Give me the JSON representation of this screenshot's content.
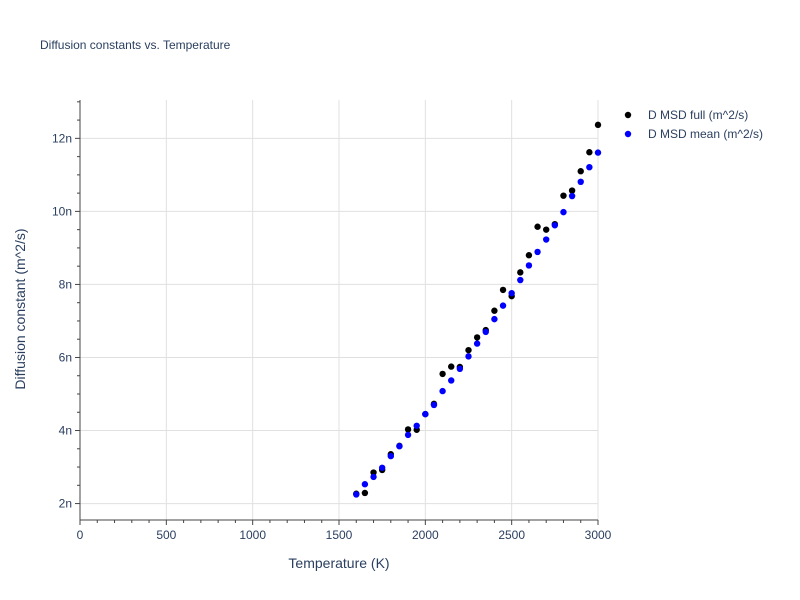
{
  "chart_data": {
    "type": "scatter",
    "title": "Diffusion constants vs. Temperature",
    "xlabel": "Temperature (K)",
    "ylabel": "Diffusion constant (m^2/s)",
    "xlim": [
      0,
      3000
    ],
    "ylim": [
      1.55,
      13.05
    ],
    "x_ticks": [
      0,
      500,
      1000,
      1500,
      2000,
      2500,
      3000
    ],
    "x_tick_labels": [
      "0",
      "500",
      "1000",
      "1500",
      "2000",
      "2500",
      "3000"
    ],
    "y_ticks": [
      2,
      4,
      6,
      8,
      10,
      12
    ],
    "y_tick_labels": [
      "2n",
      "4n",
      "6n",
      "8n",
      "10n",
      "12n"
    ],
    "y_unit_scale": "nano",
    "grid": true,
    "legend_position": "top-right",
    "series": [
      {
        "name": "D MSD full (m^2/s)",
        "color": "#000000",
        "x": [
          1600,
          1650,
          1700,
          1750,
          1800,
          1850,
          1900,
          1950,
          2000,
          2050,
          2100,
          2150,
          2200,
          2250,
          2300,
          2350,
          2400,
          2450,
          2500,
          2550,
          2600,
          2650,
          2700,
          2750,
          2800,
          2850,
          2900,
          2950,
          3000
        ],
        "y": [
          2.27,
          2.29,
          2.85,
          2.92,
          3.35,
          3.58,
          4.03,
          4.02,
          4.45,
          4.73,
          5.55,
          5.75,
          5.74,
          6.2,
          6.55,
          6.75,
          7.28,
          7.85,
          7.68,
          8.33,
          8.8,
          9.58,
          9.5,
          9.65,
          10.43,
          10.57,
          11.1,
          11.62,
          12.37
        ]
      },
      {
        "name": "D MSD mean (m^2/s)",
        "color": "#0000ff",
        "x": [
          1600,
          1650,
          1700,
          1750,
          1800,
          1850,
          1900,
          1950,
          2000,
          2050,
          2100,
          2150,
          2200,
          2250,
          2300,
          2350,
          2400,
          2450,
          2500,
          2550,
          2600,
          2650,
          2700,
          2750,
          2800,
          2850,
          2900,
          2950,
          3000
        ],
        "y": [
          2.25,
          2.53,
          2.73,
          2.98,
          3.3,
          3.57,
          3.88,
          4.13,
          4.45,
          4.7,
          5.08,
          5.37,
          5.69,
          6.03,
          6.38,
          6.7,
          7.05,
          7.42,
          7.76,
          8.12,
          8.52,
          8.89,
          9.23,
          9.62,
          9.98,
          10.42,
          10.81,
          11.21,
          11.61
        ]
      }
    ]
  }
}
